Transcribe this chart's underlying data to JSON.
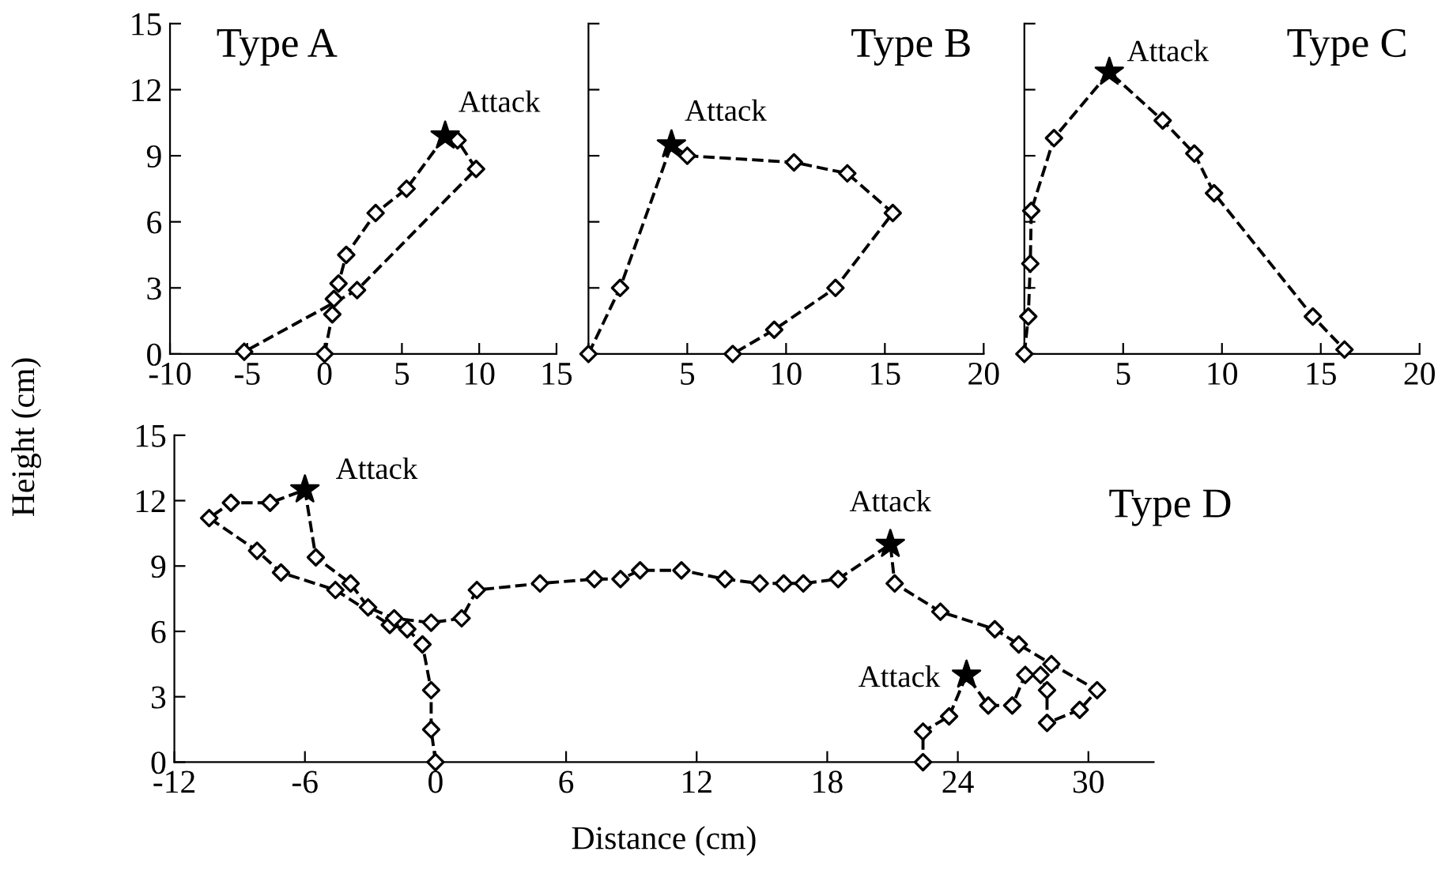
{
  "chart_data": [
    {
      "type": "line",
      "title": "Type A",
      "xlim": [
        -10,
        15
      ],
      "xticks": [
        -10,
        -5,
        0,
        5,
        10,
        15
      ],
      "ylim": [
        0,
        15
      ],
      "yticks": [
        0,
        3,
        6,
        9,
        12,
        15
      ],
      "grid": false,
      "legend": false,
      "series": [
        {
          "color": "#000000",
          "line_style": "dashed",
          "marker": "none",
          "x": [
            0,
            0.5,
            0.6,
            0.9,
            1.4,
            3.3,
            5.3,
            7.8,
            8.6,
            9.8,
            2.1,
            -5.2
          ],
          "values": [
            0,
            1.8,
            2.5,
            3.2,
            4.5,
            6.4,
            7.5,
            9.9,
            9.7,
            8.4,
            2.9,
            0.1
          ]
        },
        {
          "type": "scatter",
          "color": "#000000",
          "marker": "diamond",
          "x": [
            0,
            0.5,
            0.6,
            0.9,
            1.4,
            3.3,
            5.3,
            8.6,
            9.8,
            2.1,
            -5.2
          ],
          "values": [
            0,
            1.8,
            2.5,
            3.2,
            4.5,
            6.4,
            7.5,
            9.7,
            8.4,
            2.9,
            0.1
          ]
        },
        {
          "type": "scatter",
          "color": "#000000",
          "marker": "star",
          "x": [
            7.8
          ],
          "values": [
            9.9
          ]
        }
      ],
      "annotations": [
        {
          "text": "Attack",
          "x": 7.8,
          "y": 9.9
        }
      ]
    },
    {
      "type": "line",
      "title": "Type B",
      "xlim": [
        0,
        20
      ],
      "xticks": [
        {
          "value": 0,
          "label": null
        },
        5,
        10,
        15,
        20
      ],
      "ylim": [
        0,
        15
      ],
      "yticks": [
        0,
        3,
        6,
        9,
        12,
        15
      ],
      "tick_labels": "x",
      "grid": false,
      "legend": false,
      "series": [
        {
          "color": "#000000",
          "line_style": "dashed",
          "marker": "none",
          "x": [
            0,
            1.6,
            4.2,
            5.0,
            10.4,
            13.1,
            15.4,
            12.5,
            9.4,
            7.3
          ],
          "values": [
            0,
            3.0,
            9.5,
            9.0,
            8.7,
            8.2,
            6.4,
            3.0,
            1.1,
            0
          ]
        },
        {
          "type": "scatter",
          "color": "#000000",
          "marker": "diamond",
          "x": [
            0,
            1.6,
            5.0,
            10.4,
            13.1,
            15.4,
            12.5,
            9.4,
            7.3
          ],
          "values": [
            0,
            3.0,
            9.0,
            8.7,
            8.2,
            6.4,
            3.0,
            1.1,
            0
          ]
        },
        {
          "type": "scatter",
          "color": "#000000",
          "marker": "star",
          "x": [
            4.2
          ],
          "values": [
            9.5
          ]
        }
      ],
      "annotations": [
        {
          "text": "Attack",
          "x": 4.2,
          "y": 9.5
        }
      ]
    },
    {
      "type": "line",
      "title": "Type C",
      "xlim": [
        0,
        20
      ],
      "xticks": [
        {
          "value": 0,
          "label": null
        },
        5,
        10,
        15,
        20
      ],
      "ylim": [
        0,
        15
      ],
      "yticks": [
        0,
        3,
        6,
        9,
        12,
        15
      ],
      "tick_labels": "x",
      "grid": false,
      "legend": false,
      "series": [
        {
          "color": "#000000",
          "line_style": "dashed",
          "marker": "none",
          "x": [
            0,
            0.2,
            0.3,
            0.35,
            1.5,
            4.3,
            7.0,
            8.6,
            9.6,
            14.6,
            16.2
          ],
          "values": [
            0,
            1.7,
            4.1,
            6.5,
            9.8,
            12.8,
            10.6,
            9.1,
            7.3,
            1.7,
            0.2
          ]
        },
        {
          "type": "scatter",
          "color": "#000000",
          "marker": "diamond",
          "x": [
            0,
            0.2,
            0.3,
            0.35,
            1.5,
            7.0,
            8.6,
            9.6,
            14.6,
            16.2
          ],
          "values": [
            0,
            1.7,
            4.1,
            6.5,
            9.8,
            10.6,
            9.1,
            7.3,
            1.7,
            0.2
          ]
        },
        {
          "type": "scatter",
          "color": "#000000",
          "marker": "star",
          "x": [
            4.3
          ],
          "values": [
            12.8
          ]
        }
      ],
      "annotations": [
        {
          "text": "Attack",
          "x": 4.3,
          "y": 12.8
        }
      ]
    },
    {
      "type": "line",
      "title": "Type D",
      "xlabel": "Distance (cm)",
      "ylabel": "Height (cm)",
      "xlim": [
        -12,
        33
      ],
      "xticks": [
        -12,
        -6,
        0,
        6,
        12,
        18,
        24,
        30
      ],
      "ylim": [
        0,
        15
      ],
      "yticks": [
        0,
        3,
        6,
        9,
        12,
        15
      ],
      "grid": false,
      "legend": false,
      "series": [
        {
          "color": "#000000",
          "line_style": "dashed",
          "marker": "none",
          "x": [
            0,
            -0.2,
            -0.2,
            -0.6,
            -1.3,
            -2.1,
            -4.6,
            -7.1,
            -8.2,
            -10.4,
            -9.4,
            -7.6,
            -6.0,
            -5.5,
            -3.9,
            -3.1,
            -1.9,
            -0.2,
            1.2,
            1.9,
            4.8,
            7.3,
            8.5,
            9.4,
            11.3,
            13.3,
            14.9,
            16.0,
            16.9,
            18.5,
            20.9,
            21.1,
            23.2,
            25.7,
            26.8,
            28.3,
            30.4,
            29.6,
            28.1,
            28.1,
            27.8,
            27.1,
            26.5,
            25.4,
            24.4,
            23.6,
            22.4,
            22.4
          ],
          "values": [
            0,
            1.5,
            3.3,
            5.4,
            6.1,
            6.3,
            7.9,
            8.7,
            9.7,
            11.2,
            11.9,
            11.9,
            12.5,
            9.4,
            8.2,
            7.1,
            6.6,
            6.4,
            6.6,
            7.9,
            8.2,
            8.4,
            8.4,
            8.8,
            8.8,
            8.4,
            8.2,
            8.2,
            8.2,
            8.4,
            10.0,
            8.2,
            6.9,
            6.1,
            5.4,
            4.5,
            3.3,
            2.4,
            1.8,
            3.3,
            4.0,
            4.0,
            2.6,
            2.6,
            4.0,
            2.1,
            1.4,
            0
          ]
        },
        {
          "type": "scatter",
          "color": "#000000",
          "marker": "diamond",
          "x": [
            0,
            -0.2,
            -0.2,
            -0.6,
            -1.3,
            -2.1,
            -4.6,
            -7.1,
            -8.2,
            -10.4,
            -9.4,
            -7.6,
            -5.5,
            -3.9,
            -3.1,
            -1.9,
            -0.2,
            1.2,
            1.9,
            4.8,
            7.3,
            8.5,
            9.4,
            11.3,
            13.3,
            14.9,
            16.0,
            16.9,
            18.5,
            21.1,
            23.2,
            25.7,
            26.8,
            28.3,
            30.4,
            29.6,
            28.1,
            28.1,
            27.8,
            27.1,
            26.5,
            25.4,
            23.6,
            22.4,
            22.4
          ],
          "values": [
            0,
            1.5,
            3.3,
            5.4,
            6.1,
            6.3,
            7.9,
            8.7,
            9.7,
            11.2,
            11.9,
            11.9,
            9.4,
            8.2,
            7.1,
            6.6,
            6.4,
            6.6,
            7.9,
            8.2,
            8.4,
            8.4,
            8.8,
            8.8,
            8.4,
            8.2,
            8.2,
            8.2,
            8.4,
            8.2,
            6.9,
            6.1,
            5.4,
            4.5,
            3.3,
            2.4,
            1.8,
            3.3,
            4.0,
            4.0,
            2.6,
            2.6,
            2.1,
            1.4,
            0
          ]
        },
        {
          "type": "scatter",
          "color": "#000000",
          "marker": "star",
          "x": [
            -6.0,
            20.9,
            24.4
          ],
          "values": [
            12.5,
            10.0,
            4.0
          ]
        }
      ],
      "annotations": [
        {
          "text": "Attack",
          "x": -6.0,
          "y": 12.5
        },
        {
          "text": "Attack",
          "x": 20.9,
          "y": 10.0
        },
        {
          "text": "Attack",
          "x": 24.4,
          "y": 4.0
        }
      ]
    }
  ]
}
